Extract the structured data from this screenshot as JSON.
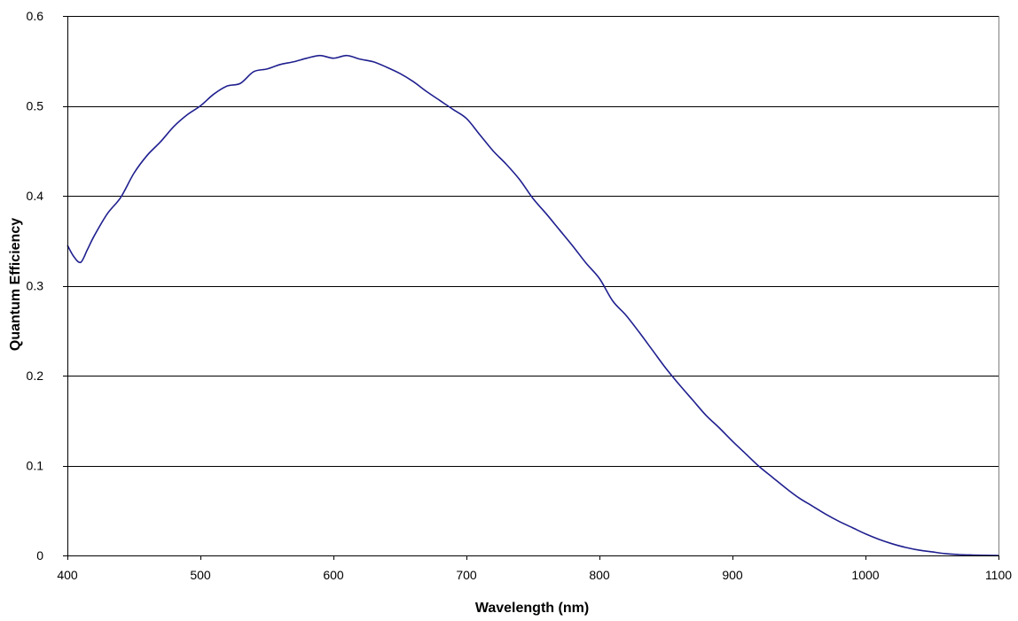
{
  "chart_data": {
    "type": "line",
    "title": "",
    "xlabel": "Wavelength (nm)",
    "ylabel": "Quantum Efficiency",
    "xlim": [
      400,
      1100
    ],
    "ylim": [
      0,
      0.6
    ],
    "x_ticks": [
      400,
      500,
      600,
      700,
      800,
      900,
      1000,
      1100
    ],
    "x_tick_labels": [
      "400",
      "500",
      "600",
      "700",
      "800",
      "900",
      "1000",
      "1100"
    ],
    "y_ticks": [
      0,
      0.1,
      0.2,
      0.3,
      0.4,
      0.5,
      0.6
    ],
    "y_tick_labels": [
      "0",
      "0.1",
      "0.2",
      "0.3",
      "0.4",
      "0.5",
      "0.6"
    ],
    "grid": "horizontal",
    "legend": "none",
    "colors": {
      "line": "#1f1f8f",
      "grid": "#000000",
      "axis": "#000000",
      "background": "#ffffff"
    },
    "series": [
      {
        "x": [
          400,
          405,
          410,
          415,
          420,
          430,
          440,
          450,
          460,
          470,
          480,
          490,
          500,
          510,
          520,
          530,
          540,
          550,
          560,
          570,
          580,
          590,
          600,
          610,
          620,
          630,
          640,
          650,
          660,
          670,
          680,
          690,
          700,
          710,
          720,
          730,
          740,
          750,
          760,
          770,
          780,
          790,
          800,
          810,
          820,
          830,
          840,
          850,
          860,
          870,
          880,
          890,
          900,
          910,
          920,
          930,
          940,
          950,
          960,
          970,
          980,
          990,
          1000,
          1010,
          1020,
          1030,
          1040,
          1050,
          1060,
          1070,
          1080,
          1090,
          1100
        ],
        "y": [
          0.345,
          0.332,
          0.326,
          0.34,
          0.355,
          0.38,
          0.398,
          0.425,
          0.445,
          0.46,
          0.477,
          0.49,
          0.5,
          0.513,
          0.522,
          0.525,
          0.538,
          0.541,
          0.546,
          0.549,
          0.553,
          0.556,
          0.553,
          0.556,
          0.552,
          0.549,
          0.543,
          0.536,
          0.527,
          0.516,
          0.506,
          0.496,
          0.486,
          0.468,
          0.45,
          0.435,
          0.418,
          0.397,
          0.38,
          0.362,
          0.344,
          0.325,
          0.308,
          0.283,
          0.267,
          0.248,
          0.228,
          0.208,
          0.19,
          0.173,
          0.156,
          0.142,
          0.127,
          0.113,
          0.099,
          0.087,
          0.075,
          0.064,
          0.055,
          0.046,
          0.038,
          0.031,
          0.024,
          0.018,
          0.013,
          0.009,
          0.006,
          0.004,
          0.002,
          0.001,
          0.0005,
          0.0002,
          0.0
        ]
      }
    ]
  }
}
